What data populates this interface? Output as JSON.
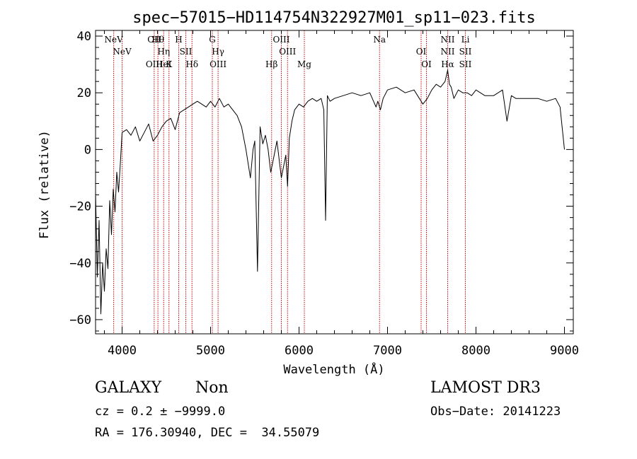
{
  "chart_data": {
    "type": "line",
    "title": "spec−57015−HD114754N322927M01_sp11−023.fits",
    "xlabel": "Wavelength (Å)",
    "ylabel": "Flux (relative)",
    "xlim": [
      3700,
      9100
    ],
    "ylim": [
      -65,
      42
    ],
    "x_ticks": [
      4000,
      5000,
      6000,
      7000,
      8000,
      9000
    ],
    "y_ticks": [
      -60,
      -40,
      -20,
      0,
      20,
      40
    ],
    "y_tick_labels": [
      "−60",
      "−40",
      "−20",
      "0",
      "20",
      "40"
    ],
    "grid": false,
    "line_color": "#000000",
    "marker_color": "#cc0000",
    "series": [
      {
        "x": [
          3700,
          3720,
          3740,
          3760,
          3780,
          3800,
          3820,
          3840,
          3860,
          3880,
          3900,
          3920,
          3940,
          3960,
          3980,
          4000,
          4050,
          4100,
          4150,
          4200,
          4250,
          4300,
          4350,
          4400,
          4450,
          4500,
          4550,
          4600,
          4650,
          4700,
          4750,
          4800,
          4850,
          4900,
          4950,
          5000,
          5050,
          5100,
          5150,
          5200,
          5250,
          5300,
          5350,
          5400,
          5450,
          5480,
          5500,
          5530,
          5560,
          5590,
          5620,
          5650,
          5680,
          5700,
          5750,
          5800,
          5850,
          5870,
          5890,
          5920,
          5950,
          6000,
          6050,
          6100,
          6150,
          6200,
          6250,
          6280,
          6300,
          6320,
          6350,
          6400,
          6500,
          6600,
          6700,
          6800,
          6870,
          6890,
          6920,
          6950,
          7000,
          7100,
          7200,
          7300,
          7400,
          7450,
          7500,
          7550,
          7600,
          7650,
          7680,
          7700,
          7720,
          7750,
          7800,
          7850,
          7900,
          7950,
          8000,
          8100,
          8200,
          8300,
          8350,
          8400,
          8450,
          8500,
          8600,
          8700,
          8800,
          8900,
          8950,
          9000
        ],
        "y": [
          -15,
          -45,
          -25,
          -58,
          -40,
          -50,
          -35,
          -42,
          -18,
          -30,
          -14,
          -22,
          -8,
          -15,
          -5,
          6,
          7,
          5,
          8,
          3,
          6,
          9,
          3,
          5,
          8,
          10,
          11,
          7,
          13,
          14,
          15,
          16,
          17,
          16,
          15,
          17,
          15,
          18,
          15,
          16,
          14,
          12,
          8,
          0,
          -10,
          0,
          3,
          -43,
          8,
          2,
          5,
          0,
          -8,
          -5,
          3,
          -10,
          -2,
          -13,
          4,
          10,
          14,
          16,
          15,
          17,
          18,
          17,
          18,
          14,
          -25,
          19,
          17,
          18,
          19,
          20,
          19,
          20,
          15,
          17,
          14,
          18,
          21,
          22,
          20,
          21,
          16,
          18,
          21,
          23,
          22,
          24,
          28,
          23,
          22,
          18,
          21,
          20,
          20,
          19,
          21,
          19,
          19,
          21,
          10,
          19,
          18,
          18,
          18,
          18,
          17,
          18,
          15,
          0
        ]
      }
    ],
    "lines": [
      {
        "x": 3905,
        "labels": [
          "NeV"
        ]
      },
      {
        "x": 4000,
        "labels": [
          "NeV"
        ]
      },
      {
        "x": 4363,
        "labels": [
          "OIII",
          "OII"
        ]
      },
      {
        "x": 4405,
        "labels": [
          "Hθ"
        ]
      },
      {
        "x": 4470,
        "labels": [
          "Hη",
          "HeI"
        ]
      },
      {
        "x": 4530,
        "labels": [
          "K"
        ]
      },
      {
        "x": 4640,
        "labels": [
          "H"
        ]
      },
      {
        "x": 4720,
        "labels": [
          "SII"
        ]
      },
      {
        "x": 4790,
        "labels": [
          "Hδ"
        ]
      },
      {
        "x": 5020,
        "labels": [
          "G"
        ]
      },
      {
        "x": 5085,
        "labels": [
          "Hγ",
          "OIII"
        ]
      },
      {
        "x": 5690,
        "labels": [
          "Hβ"
        ]
      },
      {
        "x": 5800,
        "labels": [
          "OIII"
        ]
      },
      {
        "x": 5870,
        "labels": [
          "OIII"
        ]
      },
      {
        "x": 6060,
        "labels": [
          "Mg"
        ]
      },
      {
        "x": 6910,
        "labels": [
          "Na"
        ]
      },
      {
        "x": 7380,
        "labels": [
          "OI"
        ]
      },
      {
        "x": 7440,
        "labels": [
          "OI"
        ]
      },
      {
        "x": 7680,
        "labels": [
          "NII",
          "NII",
          "Hα"
        ]
      },
      {
        "x": 7880,
        "labels": [
          "SII",
          "SII",
          "Li"
        ]
      }
    ]
  },
  "info": {
    "class": "GALAXY",
    "subclass": "Non",
    "survey": "LAMOST DR3",
    "cz": "cz = 0.2 ± −9999.0",
    "obs_date": "Obs−Date: 20141223",
    "coords": "RA = 176.30940, DEC =  34.55079"
  }
}
